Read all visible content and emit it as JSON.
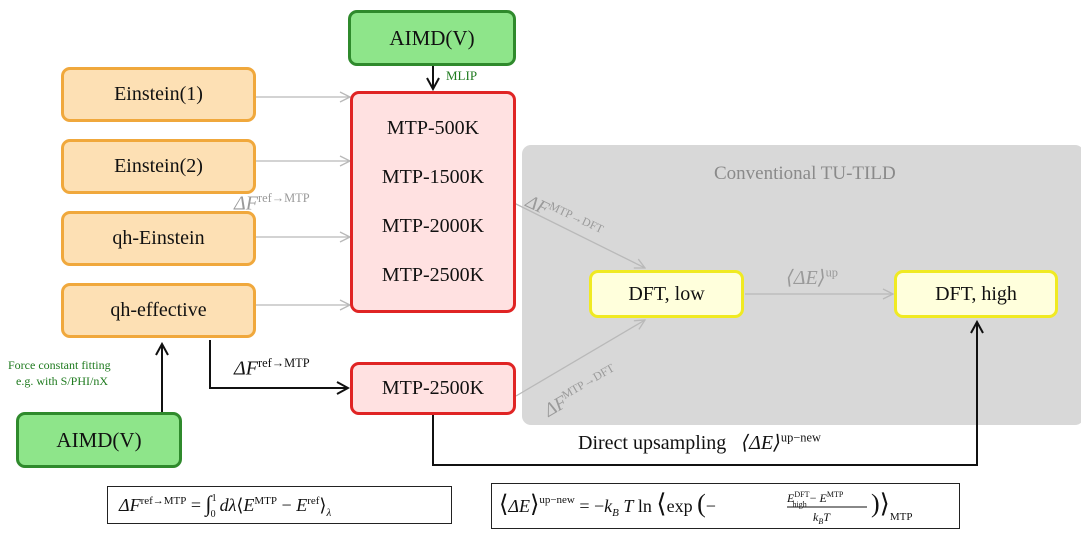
{
  "nodes": {
    "aimd_top": "AIMD(V)",
    "aimd_bottom": "AIMD(V)",
    "einstein1": "Einstein(1)",
    "einstein2": "Einstein(2)",
    "qh_einstein": "qh-Einstein",
    "qh_effective": "qh-effective",
    "mtp_500": "MTP-500K",
    "mtp_1500": "MTP-1500K",
    "mtp_2000": "MTP-2000K",
    "mtp_2500a": "MTP-2500K",
    "mtp_2500b": "MTP-2500K",
    "dft_low": "DFT, low",
    "dft_high": "DFT, high"
  },
  "labels": {
    "mlip": "MLIP",
    "force_fit_line1": "Force constant fitting",
    "force_fit_line2": "e.g. with S/PHI/nX",
    "conventional": "Conventional TU-TILD",
    "direct_upsampling": "Direct upsampling",
    "dF_symbol": "ΔF",
    "dF_ref_mtp_sup": "ref→MTP",
    "dF_mtp_dft_sup": "MTP→DFT",
    "dE_up": "⟨ΔE⟩",
    "dE_up_sup": "up",
    "dE_upnew_sup": "up−new"
  },
  "formulas": {
    "ti": "ΔF^{ref→MTP} = ∫₀¹ dλ⟨E^{MTP} − E^{ref}⟩_λ",
    "fep": "⟨ΔE⟩^{up−new} = −k_B T ln ⟨exp(−(E^{DFT}_{high} − E^{MTP})/(k_B T))⟩_MTP"
  },
  "colors": {
    "orange_fill": "#fde0b4",
    "orange_border": "#f0a83c",
    "green_fill": "#8ee58a",
    "green_border": "#2f8a2c",
    "red_fill": "#ffe1e1",
    "red_border": "#e02424",
    "yellow_fill": "#ffffdc",
    "yellow_border": "#f0ea22",
    "gray_region": "#d8d8d8",
    "gray_arrow": "#b9b9b9",
    "green_text": "#1e7a1e"
  }
}
